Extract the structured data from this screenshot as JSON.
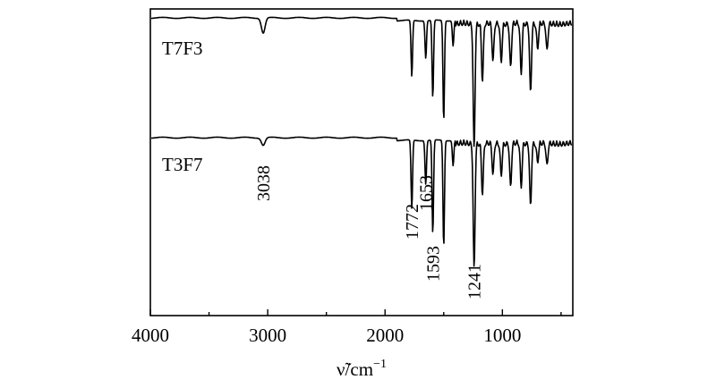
{
  "chart_data": {
    "type": "line",
    "title": "",
    "xlabel": "ν̃/cm",
    "xlabel_superscript": "−1",
    "ylabel": "",
    "xlim": [
      4000,
      400
    ],
    "x_ticks": [
      {
        "value": 4000,
        "label": "4000"
      },
      {
        "value": 3000,
        "label": "3000"
      },
      {
        "value": 2000,
        "label": "2000"
      },
      {
        "value": 1000,
        "label": "1000"
      }
    ],
    "grid": false,
    "legend": "none",
    "series": [
      {
        "name": "T7F3",
        "baseline_color": "#000000",
        "peaks": [
          {
            "x": 3038,
            "depth": 0.12
          },
          {
            "x": 1772,
            "depth": 0.45
          },
          {
            "x": 1653,
            "depth": 0.3
          },
          {
            "x": 1593,
            "depth": 0.62
          },
          {
            "x": 1500,
            "depth": 0.8
          },
          {
            "x": 1420,
            "depth": 0.2
          },
          {
            "x": 1241,
            "depth": 1.0
          },
          {
            "x": 1170,
            "depth": 0.45
          },
          {
            "x": 1080,
            "depth": 0.3
          },
          {
            "x": 1010,
            "depth": 0.3
          },
          {
            "x": 930,
            "depth": 0.35
          },
          {
            "x": 840,
            "depth": 0.4
          },
          {
            "x": 760,
            "depth": 0.55
          },
          {
            "x": 700,
            "depth": 0.2
          },
          {
            "x": 620,
            "depth": 0.22
          }
        ]
      },
      {
        "name": "T3F7",
        "baseline_color": "#000000",
        "peaks": [
          {
            "x": 3038,
            "depth": 0.06
          },
          {
            "x": 1772,
            "depth": 0.55
          },
          {
            "x": 1653,
            "depth": 0.35
          },
          {
            "x": 1593,
            "depth": 0.75
          },
          {
            "x": 1500,
            "depth": 0.85
          },
          {
            "x": 1420,
            "depth": 0.2
          },
          {
            "x": 1241,
            "depth": 1.0
          },
          {
            "x": 1170,
            "depth": 0.4
          },
          {
            "x": 1080,
            "depth": 0.25
          },
          {
            "x": 1010,
            "depth": 0.25
          },
          {
            "x": 930,
            "depth": 0.35
          },
          {
            "x": 840,
            "depth": 0.35
          },
          {
            "x": 760,
            "depth": 0.5
          },
          {
            "x": 700,
            "depth": 0.15
          },
          {
            "x": 620,
            "depth": 0.18
          }
        ]
      }
    ],
    "annotations": [
      {
        "x": 3038,
        "label": "3038"
      },
      {
        "x": 1772,
        "label": "1772"
      },
      {
        "x": 1653,
        "label": "1653"
      },
      {
        "x": 1593,
        "label": "1593"
      },
      {
        "x": 1241,
        "label": "1241"
      }
    ]
  }
}
